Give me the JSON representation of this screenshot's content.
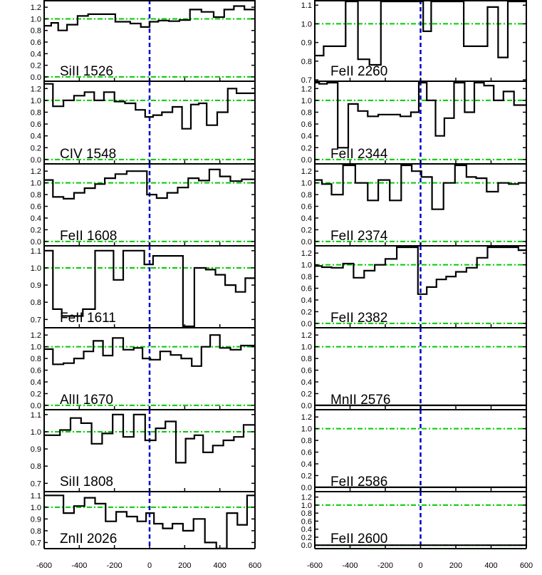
{
  "chart_data": [
    {
      "type": "line",
      "label": "SiII 1526",
      "ylim": [
        -0.05,
        1.3
      ],
      "yticks": [
        0.0,
        0.2,
        0.4,
        0.6,
        0.8,
        1.0,
        1.2
      ],
      "xlim": [
        -600,
        600
      ],
      "x": [
        -580,
        -540,
        -500,
        -440,
        -380,
        -320,
        -250,
        -140,
        -80,
        -20,
        20,
        80,
        140,
        200,
        260,
        330,
        400,
        450,
        510,
        570
      ],
      "y": [
        0.88,
        0.93,
        0.8,
        0.9,
        1.05,
        1.08,
        1.08,
        0.95,
        0.92,
        0.86,
        0.95,
        0.97,
        0.96,
        0.98,
        1.16,
        1.12,
        1.03,
        1.16,
        1.22,
        1.16
      ]
    },
    {
      "type": "line",
      "label": "CIV 1548",
      "ylim": [
        -0.05,
        1.3
      ],
      "yticks": [
        0.0,
        0.2,
        0.4,
        0.6,
        0.8,
        1.0,
        1.2
      ],
      "xlim": [
        -600,
        600
      ],
      "x": [
        -580,
        -520,
        -460,
        -400,
        -340,
        -290,
        -230,
        -170,
        -110,
        -50,
        0,
        40,
        100,
        160,
        210,
        260,
        300,
        350,
        420,
        470,
        520,
        570
      ],
      "y": [
        1.28,
        0.9,
        1.0,
        1.08,
        1.14,
        1.0,
        1.14,
        0.98,
        0.95,
        0.84,
        0.72,
        0.75,
        0.8,
        0.89,
        0.52,
        0.93,
        0.95,
        0.58,
        0.8,
        1.2,
        1.12,
        1.12
      ]
    },
    {
      "type": "line",
      "label": "FeII 1608",
      "ylim": [
        -0.05,
        1.3
      ],
      "yticks": [
        0.0,
        0.2,
        0.4,
        0.6,
        0.8,
        1.0,
        1.2
      ],
      "xlim": [
        -600,
        600
      ],
      "x": [
        -580,
        -520,
        -460,
        -400,
        -340,
        -280,
        -230,
        -160,
        -100,
        -40,
        10,
        70,
        130,
        190,
        250,
        310,
        370,
        430,
        490,
        560
      ],
      "y": [
        1.05,
        0.76,
        0.73,
        0.83,
        0.91,
        0.98,
        1.08,
        1.15,
        1.2,
        1.2,
        0.8,
        0.74,
        0.83,
        0.92,
        1.08,
        1.04,
        1.23,
        1.11,
        1.03,
        1.06
      ]
    },
    {
      "type": "line",
      "label": "FeII 1611",
      "ylim": [
        0.66,
        1.12
      ],
      "yticks": [
        0.7,
        0.8,
        0.9,
        1.0,
        1.1
      ],
      "ytick_labels": [
        "0.7",
        "0.8",
        "0.9",
        "1.0",
        "1.1"
      ],
      "xlim": [
        -600,
        600
      ],
      "x": [
        -580,
        -520,
        -480,
        -420,
        -340,
        -280,
        -230,
        -180,
        -120,
        -60,
        0,
        40,
        100,
        160,
        220,
        290,
        350,
        400,
        460,
        520,
        570
      ],
      "y": [
        1.1,
        0.76,
        0.72,
        0.72,
        0.76,
        1.1,
        1.1,
        0.93,
        1.1,
        1.1,
        1.02,
        1.07,
        1.07,
        1.07,
        0.66,
        1.0,
        0.99,
        0.96,
        0.9,
        0.86,
        0.94
      ]
    },
    {
      "type": "line",
      "label": "AlII 1670",
      "ylim": [
        -0.05,
        1.3
      ],
      "yticks": [
        0.0,
        0.2,
        0.4,
        0.6,
        0.8,
        1.0,
        1.2
      ],
      "xlim": [
        -600,
        600
      ],
      "x": [
        -580,
        -520,
        -460,
        -400,
        -350,
        -290,
        -240,
        -180,
        -120,
        -60,
        -20,
        30,
        90,
        150,
        210,
        270,
        320,
        370,
        430,
        490,
        550
      ],
      "y": [
        0.96,
        0.7,
        0.72,
        0.8,
        0.92,
        1.1,
        0.85,
        1.15,
        0.95,
        0.98,
        0.8,
        0.78,
        0.92,
        0.86,
        0.8,
        0.67,
        1.0,
        1.2,
        0.98,
        0.95,
        1.02
      ]
    },
    {
      "type": "line",
      "label": "SiII 1808",
      "ylim": [
        0.66,
        1.12
      ],
      "yticks": [
        0.7,
        0.8,
        0.9,
        1.0,
        1.1
      ],
      "ytick_labels": [
        "0.7",
        "0.8",
        "0.9",
        "1.0",
        "1.1"
      ],
      "xlim": [
        -600,
        600
      ],
      "x": [
        -580,
        -540,
        -480,
        -420,
        -360,
        -300,
        -240,
        -180,
        -120,
        -60,
        10,
        60,
        120,
        180,
        230,
        280,
        330,
        390,
        450,
        510,
        560
      ],
      "y": [
        0.98,
        0.98,
        1.01,
        1.08,
        1.05,
        0.93,
        0.99,
        1.1,
        0.97,
        1.1,
        0.95,
        1.02,
        1.06,
        0.82,
        0.96,
        0.98,
        0.88,
        0.92,
        0.95,
        0.97,
        1.04
      ]
    },
    {
      "type": "line",
      "label": "ZnII 2026",
      "ylim": [
        0.66,
        1.12
      ],
      "yticks": [
        0.7,
        0.8,
        0.9,
        1.0,
        1.1
      ],
      "ytick_labels": [
        "0.7",
        "0.8",
        "0.9",
        "1.0",
        "1.1"
      ],
      "xlim": [
        -600,
        600
      ],
      "x": [
        -580,
        -520,
        -460,
        -400,
        -340,
        -280,
        -220,
        -160,
        -100,
        -40,
        0,
        50,
        100,
        160,
        220,
        280,
        350,
        410,
        470,
        530,
        580
      ],
      "y": [
        1.1,
        1.1,
        0.95,
        1.01,
        1.08,
        1.03,
        0.88,
        0.96,
        0.92,
        0.88,
        0.95,
        0.86,
        0.82,
        0.86,
        0.8,
        0.9,
        0.7,
        0.65,
        0.95,
        0.85,
        1.1
      ]
    },
    {
      "type": "line",
      "label": "FeII 2260",
      "ylim": [
        0.7,
        1.12
      ],
      "yticks": [
        0.7,
        0.8,
        0.9,
        1.0,
        1.1
      ],
      "ytick_labels": [
        "0.7",
        "0.8",
        "0.9",
        "1.0",
        "1.1"
      ],
      "xlim": [
        -600,
        600
      ],
      "x": [
        -580,
        -520,
        -460,
        -390,
        -320,
        -260,
        -190,
        -120,
        -60,
        0,
        30,
        90,
        150,
        210,
        280,
        350,
        410,
        470,
        520,
        570
      ],
      "y": [
        0.83,
        0.88,
        0.88,
        1.12,
        0.81,
        0.78,
        1.12,
        1.12,
        1.12,
        1.12,
        0.96,
        1.12,
        1.12,
        1.12,
        0.88,
        0.88,
        1.09,
        0.82,
        1.12,
        1.12
      ]
    },
    {
      "type": "line",
      "label": "FeII 2344",
      "ylim": [
        -0.05,
        1.3
      ],
      "yticks": [
        0.0,
        0.2,
        0.4,
        0.6,
        0.8,
        1.0,
        1.2
      ],
      "xlim": [
        -600,
        600
      ],
      "x": [
        -590,
        -560,
        -500,
        -440,
        -380,
        -330,
        -270,
        -210,
        -150,
        -80,
        -30,
        10,
        60,
        110,
        160,
        220,
        280,
        330,
        390,
        440,
        500,
        560,
        590
      ],
      "y": [
        1.3,
        1.28,
        1.3,
        0.2,
        0.94,
        0.82,
        0.73,
        0.76,
        0.76,
        0.73,
        0.8,
        1.3,
        1.0,
        0.4,
        0.7,
        1.3,
        0.8,
        1.3,
        1.25,
        1.0,
        1.15,
        0.92,
        0.92
      ]
    },
    {
      "type": "line",
      "label": "FeII 2374",
      "ylim": [
        -0.05,
        1.3
      ],
      "yticks": [
        0.0,
        0.2,
        0.4,
        0.6,
        0.8,
        1.0,
        1.2
      ],
      "xlim": [
        -600,
        600
      ],
      "x": [
        -580,
        -540,
        -470,
        -410,
        -330,
        -270,
        -210,
        -140,
        -80,
        -20,
        30,
        100,
        160,
        230,
        290,
        340,
        410,
        470,
        530,
        580
      ],
      "y": [
        1.05,
        0.98,
        0.8,
        1.3,
        1.0,
        0.7,
        1.05,
        0.7,
        1.3,
        1.2,
        1.1,
        0.55,
        1.0,
        1.3,
        1.1,
        1.08,
        0.85,
        1.0,
        0.98,
        1.0
      ]
    },
    {
      "type": "line",
      "label": "FeII 2382",
      "ylim": [
        -0.05,
        1.3
      ],
      "yticks": [
        0.0,
        0.2,
        0.4,
        0.6,
        0.8,
        1.0,
        1.2
      ],
      "xlim": [
        -600,
        600
      ],
      "x": [
        -580,
        -540,
        -470,
        -410,
        -350,
        -290,
        -230,
        -170,
        -100,
        -40,
        10,
        60,
        120,
        170,
        230,
        290,
        350,
        410,
        470,
        530,
        580
      ],
      "y": [
        0.98,
        0.96,
        0.95,
        1.02,
        0.78,
        0.9,
        1.0,
        1.1,
        1.3,
        1.3,
        0.5,
        0.62,
        0.75,
        0.8,
        0.88,
        0.95,
        1.12,
        1.3,
        1.3,
        1.3,
        1.25
      ]
    },
    {
      "type": "line",
      "label": "MnII 2576",
      "ylim": [
        -0.05,
        1.3
      ],
      "yticks": [
        0.0,
        0.2,
        0.4,
        0.6,
        0.8,
        1.0,
        1.2
      ],
      "xlim": [
        -600,
        600
      ],
      "x": [
        -600,
        600
      ],
      "y": [
        0.0,
        0.0
      ]
    },
    {
      "type": "line",
      "label": "FeII 2586",
      "ylim": [
        -0.05,
        1.3
      ],
      "yticks": [
        0.0,
        0.2,
        0.4,
        0.6,
        0.8,
        1.0,
        1.2
      ],
      "xlim": [
        -600,
        600
      ],
      "x": [
        -600,
        600
      ],
      "y": [
        0.0,
        0.0
      ]
    },
    {
      "type": "line",
      "label": "FeII 2600",
      "ylim": [
        -0.05,
        1.3
      ],
      "yticks": [
        0.0,
        0.2,
        0.4,
        0.6,
        0.8,
        1.0,
        1.2
      ],
      "xlim": [
        -600,
        600
      ],
      "x": [
        -600,
        600
      ],
      "y": [
        0.0,
        0.0
      ]
    }
  ],
  "xtick_labels": [
    "-600",
    "-400",
    "-200",
    "0",
    "200",
    "400",
    "600"
  ],
  "xticks": [
    -600,
    -400,
    -200,
    0,
    200,
    400,
    600
  ],
  "colors": {
    "spectrum": "#000000",
    "reference": "#00cc00",
    "zero_velocity": "#0000cc"
  }
}
